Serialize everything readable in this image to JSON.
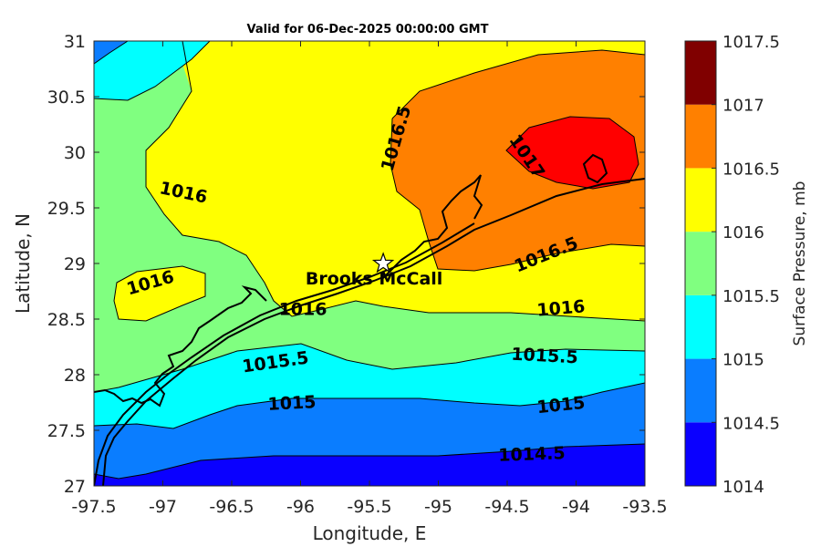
{
  "title": "Valid for 06-Dec-2025 00:00:00 GMT",
  "colors": {
    "band_14_145": "#0a00ff",
    "band_145_15": "#0a7dff",
    "band_15_155": "#00ffff",
    "band_155_16": "#80ff80",
    "band_16_165": "#ffff00",
    "band_165_17": "#ff8000",
    "band_17_175": "#ff0000",
    "band_175_18": "#800000"
  },
  "chart_data": {
    "type": "contour-map",
    "xlabel": "Longitude, E",
    "ylabel": "Latitude, N",
    "xlim": [
      -97.5,
      -93.5
    ],
    "ylim": [
      27,
      31
    ],
    "xticks": [
      "-97.5",
      "-97",
      "-96.5",
      "-96",
      "-95.5",
      "-95",
      "-94.5",
      "-94",
      "-93.5"
    ],
    "yticks": [
      "27",
      "27.5",
      "28",
      "28.5",
      "29",
      "29.5",
      "30",
      "30.5",
      "31"
    ],
    "colorbar": {
      "label": "Surface Pressure, mb",
      "ticks": [
        "1014",
        "1014.5",
        "1015",
        "1015.5",
        "1016",
        "1016.5",
        "1017",
        "1017.5"
      ],
      "levels": [
        1014,
        1014.5,
        1015,
        1015.5,
        1016,
        1016.5,
        1017,
        1017.5
      ]
    },
    "contour_labels": [
      "1016.5",
      "1017",
      "1016",
      "1016",
      "1016.5",
      "1016",
      "1016",
      "1015.5",
      "1015.5",
      "1015",
      "1015",
      "1014.5"
    ],
    "station": {
      "name": "Brooks McCall",
      "lon": -95.4,
      "lat": 29.0
    }
  }
}
